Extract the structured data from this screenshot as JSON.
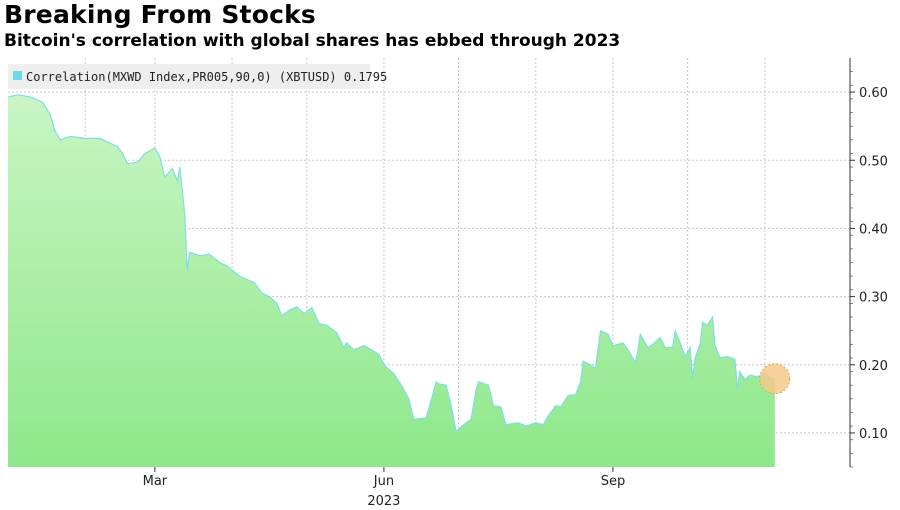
{
  "chart_data": {
    "type": "area",
    "title": "Breaking From Stocks",
    "subtitle": "Bitcoin's correlation with global shares has ebbed through 2023",
    "xlabel": "2023",
    "ylabel": "",
    "legend": {
      "label": "Correlation(MXWD Index,PR005,90,0) (XBTUSD) 0.1795",
      "placement": "top-left"
    },
    "ylim": [
      0.05,
      0.65
    ],
    "yticks": [
      "0.60",
      "0.50",
      "0.40",
      "0.30",
      "0.20",
      "0.10"
    ],
    "xticks": [
      {
        "label": "Mar",
        "date": "2023-03-01"
      },
      {
        "label": "Jun",
        "date": "2023-06-01"
      },
      {
        "label": "Sep",
        "date": "2023-09-01"
      }
    ],
    "xlim": [
      "2023-01-01",
      "2023-11-30"
    ],
    "grid": true,
    "series": [
      {
        "name": "Correlation(MXWD Index,PR005,90,0) (XBTUSD)",
        "color": "#90ee90",
        "last_value": 0.1795,
        "points": [
          [
            "2023-01-01",
            0.593
          ],
          [
            "2023-01-05",
            0.596
          ],
          [
            "2023-01-10",
            0.593
          ],
          [
            "2023-01-15",
            0.585
          ],
          [
            "2023-01-18",
            0.566
          ],
          [
            "2023-01-20",
            0.542
          ],
          [
            "2023-01-22",
            0.53
          ],
          [
            "2023-01-26",
            0.535
          ],
          [
            "2023-02-01",
            0.532
          ],
          [
            "2023-02-07",
            0.532
          ],
          [
            "2023-02-11",
            0.525
          ],
          [
            "2023-02-14",
            0.52
          ],
          [
            "2023-02-16",
            0.51
          ],
          [
            "2023-02-18",
            0.495
          ],
          [
            "2023-02-22",
            0.497
          ],
          [
            "2023-02-25",
            0.51
          ],
          [
            "2023-03-01",
            0.518
          ],
          [
            "2023-03-03",
            0.505
          ],
          [
            "2023-03-05",
            0.475
          ],
          [
            "2023-03-08",
            0.488
          ],
          [
            "2023-03-10",
            0.47
          ],
          [
            "2023-03-11",
            0.49
          ],
          [
            "2023-03-13",
            0.42
          ],
          [
            "2023-03-14",
            0.34
          ],
          [
            "2023-03-15",
            0.365
          ],
          [
            "2023-03-19",
            0.36
          ],
          [
            "2023-03-23",
            0.362
          ],
          [
            "2023-03-27",
            0.35
          ],
          [
            "2023-03-30",
            0.345
          ],
          [
            "2023-04-04",
            0.33
          ],
          [
            "2023-04-07",
            0.325
          ],
          [
            "2023-04-10",
            0.32
          ],
          [
            "2023-04-13",
            0.305
          ],
          [
            "2023-04-16",
            0.3
          ],
          [
            "2023-04-19",
            0.29
          ],
          [
            "2023-04-21",
            0.272
          ],
          [
            "2023-04-24",
            0.28
          ],
          [
            "2023-04-27",
            0.285
          ],
          [
            "2023-04-30",
            0.275
          ],
          [
            "2023-05-03",
            0.284
          ],
          [
            "2023-05-06",
            0.26
          ],
          [
            "2023-05-09",
            0.258
          ],
          [
            "2023-05-13",
            0.247
          ],
          [
            "2023-05-16",
            0.225
          ],
          [
            "2023-05-17",
            0.232
          ],
          [
            "2023-05-20",
            0.222
          ],
          [
            "2023-05-24",
            0.228
          ],
          [
            "2023-05-27",
            0.222
          ],
          [
            "2023-05-30",
            0.215
          ],
          [
            "2023-06-01",
            0.2
          ],
          [
            "2023-06-05",
            0.187
          ],
          [
            "2023-06-08",
            0.17
          ],
          [
            "2023-06-11",
            0.15
          ],
          [
            "2023-06-13",
            0.12
          ],
          [
            "2023-06-18",
            0.122
          ],
          [
            "2023-06-20",
            0.148
          ],
          [
            "2023-06-22",
            0.175
          ],
          [
            "2023-06-23",
            0.172
          ],
          [
            "2023-06-26",
            0.17
          ],
          [
            "2023-06-28",
            0.14
          ],
          [
            "2023-06-30",
            0.102
          ],
          [
            "2023-07-03",
            0.112
          ],
          [
            "2023-07-06",
            0.12
          ],
          [
            "2023-07-08",
            0.162
          ],
          [
            "2023-07-09",
            0.175
          ],
          [
            "2023-07-13",
            0.17
          ],
          [
            "2023-07-15",
            0.14
          ],
          [
            "2023-07-18",
            0.138
          ],
          [
            "2023-07-20",
            0.112
          ],
          [
            "2023-07-25",
            0.115
          ],
          [
            "2023-07-28",
            0.11
          ],
          [
            "2023-08-01",
            0.115
          ],
          [
            "2023-08-04",
            0.112
          ],
          [
            "2023-08-06",
            0.125
          ],
          [
            "2023-08-09",
            0.14
          ],
          [
            "2023-08-11",
            0.138
          ],
          [
            "2023-08-14",
            0.155
          ],
          [
            "2023-08-17",
            0.156
          ],
          [
            "2023-08-19",
            0.175
          ],
          [
            "2023-08-20",
            0.205
          ],
          [
            "2023-08-23",
            0.2
          ],
          [
            "2023-08-25",
            0.195
          ],
          [
            "2023-08-27",
            0.25
          ],
          [
            "2023-08-30",
            0.245
          ],
          [
            "2023-09-01",
            0.228
          ],
          [
            "2023-09-05",
            0.232
          ],
          [
            "2023-09-07",
            0.222
          ],
          [
            "2023-09-10",
            0.203
          ],
          [
            "2023-09-11",
            0.22
          ],
          [
            "2023-09-12",
            0.245
          ],
          [
            "2023-09-15",
            0.225
          ],
          [
            "2023-09-17",
            0.23
          ],
          [
            "2023-09-20",
            0.24
          ],
          [
            "2023-09-22",
            0.225
          ],
          [
            "2023-09-25",
            0.226
          ],
          [
            "2023-09-26",
            0.25
          ],
          [
            "2023-09-28",
            0.232
          ],
          [
            "2023-09-30",
            0.212
          ],
          [
            "2023-10-02",
            0.225
          ],
          [
            "2023-10-03",
            0.18
          ],
          [
            "2023-10-04",
            0.21
          ],
          [
            "2023-10-06",
            0.23
          ],
          [
            "2023-10-07",
            0.262
          ],
          [
            "2023-10-09",
            0.258
          ],
          [
            "2023-10-11",
            0.27
          ],
          [
            "2023-10-12",
            0.228
          ],
          [
            "2023-10-14",
            0.21
          ],
          [
            "2023-10-17",
            0.212
          ],
          [
            "2023-10-20",
            0.208
          ],
          [
            "2023-10-21",
            0.165
          ],
          [
            "2023-10-22",
            0.19
          ],
          [
            "2023-10-24",
            0.178
          ],
          [
            "2023-10-26",
            0.185
          ],
          [
            "2023-10-29",
            0.182
          ],
          [
            "2023-11-01",
            0.188
          ],
          [
            "2023-11-04",
            0.18
          ],
          [
            "2023-11-05",
            0.1795
          ]
        ]
      }
    ]
  }
}
